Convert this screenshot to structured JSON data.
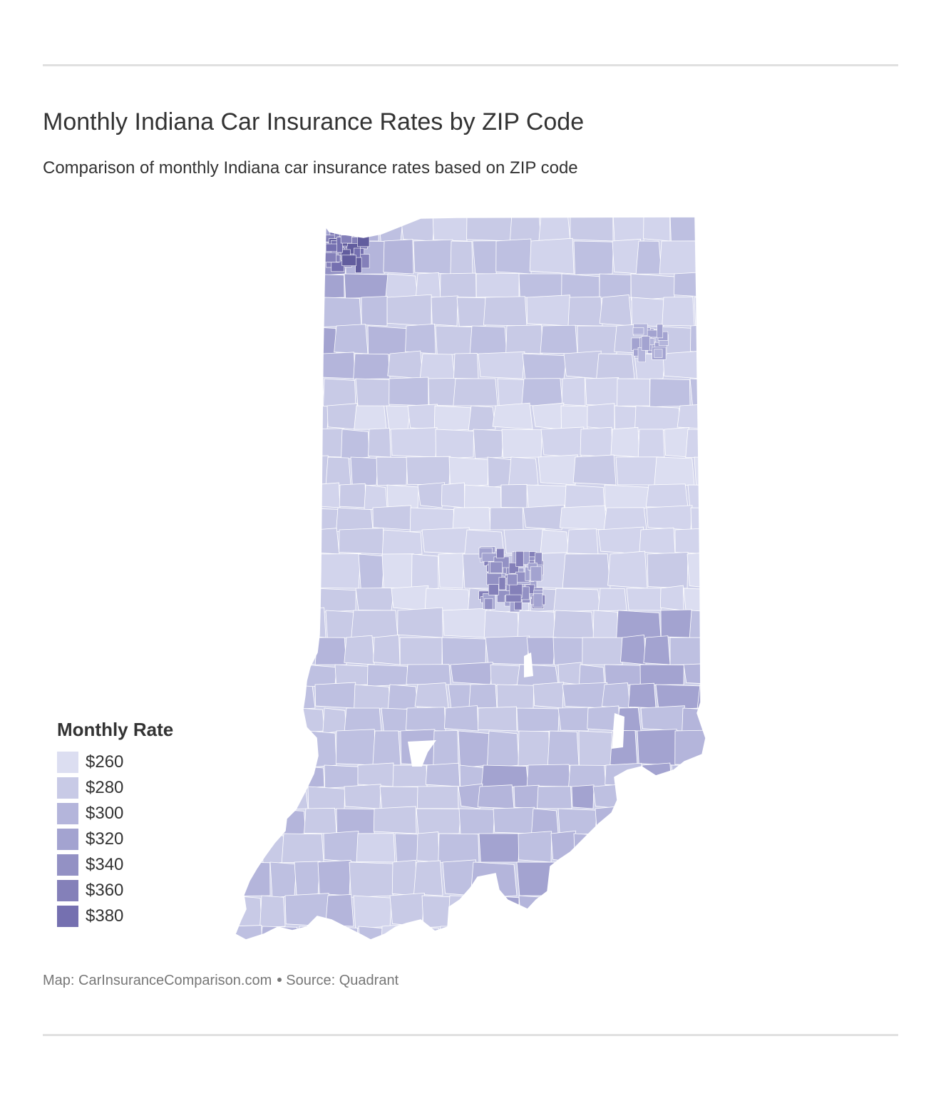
{
  "header": {
    "title": "Monthly Indiana Car Insurance Rates by ZIP Code",
    "subtitle": "Comparison of monthly Indiana car insurance rates based on ZIP code"
  },
  "legend": {
    "title": "Monthly Rate",
    "items": [
      {
        "label": "$260",
        "color": "#dcdef1"
      },
      {
        "label": "$280",
        "color": "#c8cae6"
      },
      {
        "label": "$300",
        "color": "#b4b5db"
      },
      {
        "label": "$320",
        "color": "#a3a3d0"
      },
      {
        "label": "$340",
        "color": "#9391c4"
      },
      {
        "label": "$360",
        "color": "#8480b9"
      },
      {
        "label": "$380",
        "color": "#7570b0"
      }
    ]
  },
  "footer": {
    "map_credit": "Map: CarInsuranceComparison.com",
    "source": "Source: Quadrant"
  },
  "map": {
    "region": "Indiana",
    "zip_fill_colors": [
      "#e4e6f6",
      "#dcdef1",
      "#d2d4ec",
      "#c8cae6",
      "#bec0e1",
      "#b4b5db",
      "#a3a3d0",
      "#9391c4",
      "#8480b9",
      "#7570b0",
      "#625d9e"
    ]
  }
}
